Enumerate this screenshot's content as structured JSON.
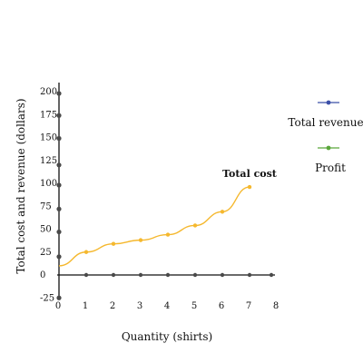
{
  "chart_data": {
    "type": "line",
    "title": "",
    "xlabel": "Quantity (shirts)",
    "ylabel": "Total cost and revenue (dollars)",
    "xlim": [
      0,
      8
    ],
    "ylim": [
      -25,
      200
    ],
    "x_ticks": [
      "0",
      "1",
      "2",
      "3",
      "4",
      "5",
      "6",
      "7",
      "8"
    ],
    "y_ticks": [
      "-25",
      "0",
      "25",
      "50",
      "75",
      "100",
      "125",
      "150",
      "175",
      "200"
    ],
    "grid": false,
    "legend_position": "right",
    "legend": [
      {
        "label": "Total revenue",
        "color": "#3b4fa8"
      },
      {
        "label": "Profit",
        "color": "#5aa63a"
      }
    ],
    "series": [
      {
        "name": "Total cost",
        "color": "#f5b82e",
        "x": [
          0,
          1,
          2,
          3,
          4,
          5,
          6,
          7
        ],
        "values": [
          10,
          25,
          34,
          38,
          44,
          54,
          69,
          96
        ]
      }
    ],
    "annotations": [
      {
        "text": "Total cost",
        "series": "Total cost"
      }
    ],
    "x_axis_markers": [
      1,
      2,
      3,
      4,
      5,
      6,
      7,
      8
    ],
    "y_axis_markers": [
      -25,
      20,
      47,
      72,
      98,
      120,
      149,
      174,
      198
    ]
  }
}
